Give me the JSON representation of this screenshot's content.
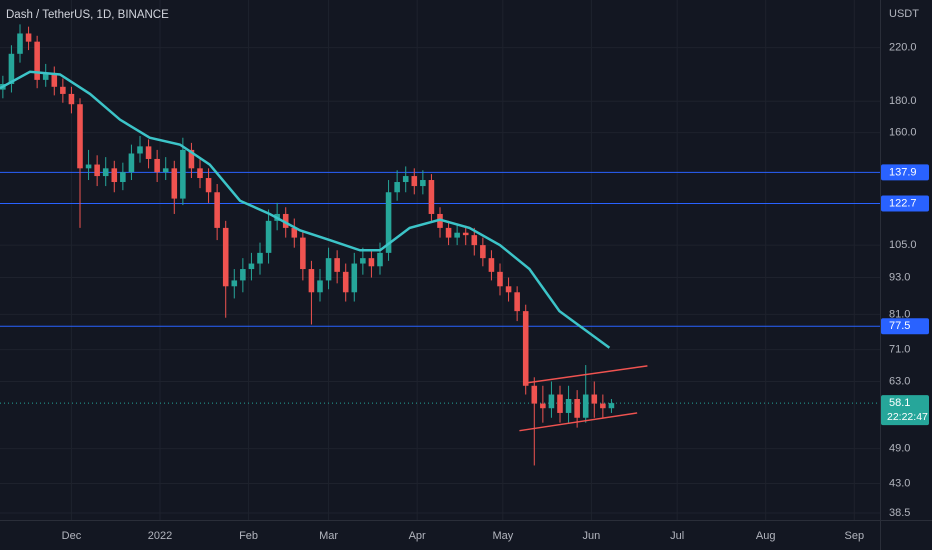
{
  "chart_data": {
    "type": "candlestick",
    "title": "Dash / TetherUS, 1D, BINANCE",
    "y_axis_label": "USDT",
    "log_scale": true,
    "grid": true,
    "up_color": "#26a69a",
    "down_color": "#ef5350",
    "x": [
      1,
      4,
      7,
      10,
      13,
      16,
      19,
      22,
      25,
      28,
      31,
      34,
      37,
      40,
      43,
      46,
      49,
      52,
      55,
      58,
      61,
      64,
      67,
      70,
      73,
      76,
      79,
      82,
      85,
      88,
      91,
      94,
      97,
      100,
      103,
      106,
      109,
      112,
      115,
      118,
      121,
      124,
      127,
      130,
      133,
      136,
      139,
      142,
      145,
      148,
      151,
      154,
      157,
      160,
      163,
      166,
      169,
      172,
      175,
      178,
      181,
      184,
      187,
      190,
      193,
      196,
      199,
      202,
      205,
      208,
      211,
      214
    ],
    "open": [
      188,
      192,
      215,
      232,
      225,
      195,
      200,
      190,
      185,
      178,
      140,
      142,
      136,
      140,
      133,
      138,
      148,
      152,
      145,
      138,
      140,
      125,
      150,
      140,
      135,
      128,
      112,
      90,
      92,
      96,
      98,
      102,
      115,
      118,
      112,
      108,
      96,
      88,
      92,
      100,
      95,
      88,
      98,
      100,
      97,
      102,
      128,
      133,
      136,
      131,
      134,
      118,
      112,
      108,
      110,
      109,
      105,
      100,
      95,
      90,
      88,
      82,
      62,
      58,
      57,
      60,
      56,
      59,
      55,
      60,
      58,
      57
    ],
    "high": [
      198,
      222,
      240,
      238,
      230,
      207,
      205,
      196,
      190,
      182,
      150,
      147,
      146,
      144,
      143,
      153,
      158,
      156,
      150,
      146,
      144,
      157,
      154,
      145,
      140,
      132,
      115,
      96,
      100,
      102,
      106,
      120,
      123,
      121,
      116,
      111,
      99,
      96,
      104,
      103,
      98,
      102,
      104,
      103,
      106,
      134,
      139,
      141,
      140,
      139,
      137,
      121,
      115,
      113,
      113,
      112,
      108,
      103,
      98,
      93,
      90,
      84,
      64,
      62,
      63,
      62,
      62,
      61,
      67,
      63,
      60,
      59
    ],
    "low": [
      182,
      186,
      208,
      218,
      189,
      190,
      184,
      179,
      172,
      112,
      134,
      131,
      131,
      128,
      129,
      134,
      143,
      140,
      133,
      134,
      118,
      122,
      135,
      130,
      123,
      107,
      80,
      86,
      88,
      92,
      94,
      98,
      111,
      108,
      104,
      92,
      78,
      85,
      89,
      91,
      85,
      85,
      94,
      93,
      94,
      99,
      124,
      128,
      127,
      127,
      115,
      108,
      105,
      105,
      105,
      101,
      97,
      92,
      87,
      85,
      79,
      60,
      46,
      54,
      55,
      54,
      54,
      53,
      54,
      55,
      55,
      56
    ],
    "close": [
      192,
      215,
      232,
      225,
      195,
      200,
      190,
      185,
      178,
      140,
      142,
      136,
      140,
      133,
      138,
      148,
      152,
      145,
      138,
      140,
      125,
      150,
      140,
      135,
      128,
      112,
      90,
      92,
      96,
      98,
      102,
      115,
      118,
      112,
      108,
      96,
      88,
      92,
      100,
      95,
      88,
      98,
      100,
      97,
      102,
      128,
      133,
      136,
      131,
      134,
      118,
      112,
      108,
      110,
      109,
      105,
      100,
      95,
      90,
      88,
      82,
      62,
      58,
      57,
      60,
      56,
      59,
      55,
      60,
      58,
      57,
      58.1
    ],
    "ma": {
      "color": "#3cc4c8",
      "x": [
        0,
        10.5,
        21,
        31.5,
        42,
        52.4,
        63,
        73.4,
        84,
        94.4,
        105,
        115.4,
        126,
        133,
        143.4,
        154,
        164.3,
        175,
        185.3,
        195.8,
        213.3
      ],
      "values": [
        189,
        201,
        199,
        185,
        168,
        157,
        153,
        142,
        124,
        118,
        111,
        107,
        103,
        103,
        112,
        115.5,
        112,
        105,
        96,
        82,
        71.5
      ]
    },
    "price_lines": {
      "color": "#2962ff",
      "values": [
        137.9,
        122.7,
        77.5
      ]
    },
    "current_price": {
      "value": 58.1,
      "countdown": "22:22:47",
      "color": "#26a69a"
    },
    "channel": {
      "color": "#f05350",
      "lines": [
        {
          "x": [
            184.6,
            226.6
          ],
          "values": [
            62.7,
            66.8
          ]
        },
        {
          "x": [
            181.8,
            223
          ],
          "values": [
            52.4,
            56.0
          ]
        }
      ]
    },
    "xlim": [
      0,
      308
    ],
    "xticks": [
      {
        "value": 25,
        "label": "Dec"
      },
      {
        "value": 56,
        "label": "2022"
      },
      {
        "value": 87,
        "label": "Feb"
      },
      {
        "value": 115,
        "label": "Mar"
      },
      {
        "value": 146,
        "label": "Apr"
      },
      {
        "value": 176,
        "label": "May"
      },
      {
        "value": 207,
        "label": "Jun"
      },
      {
        "value": 237,
        "label": "Jul"
      },
      {
        "value": 268,
        "label": "Aug"
      },
      {
        "value": 299,
        "label": "Sep"
      }
    ],
    "ylim": [
      37.5,
      263
    ],
    "yticks": [
      {
        "value": 220,
        "label": "220.0"
      },
      {
        "value": 180,
        "label": "180.0"
      },
      {
        "value": 160,
        "label": "160.0"
      },
      {
        "value": 105,
        "label": "105.0"
      },
      {
        "value": 93,
        "label": "93.0"
      },
      {
        "value": 81,
        "label": "81.0"
      },
      {
        "value": 71,
        "label": "71.0"
      },
      {
        "value": 63,
        "label": "63.0"
      },
      {
        "value": 49,
        "label": "49.0"
      },
      {
        "value": 43,
        "label": "43.0"
      },
      38.5
    ]
  }
}
